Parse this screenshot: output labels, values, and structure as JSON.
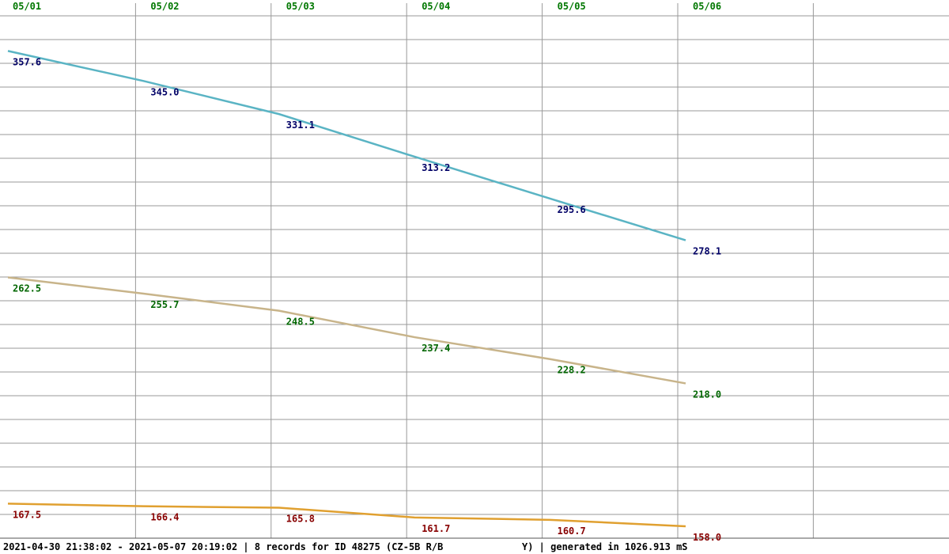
{
  "chart_data": {
    "type": "line",
    "categories": [
      "05/01",
      "05/02",
      "05/03",
      "05/04",
      "05/05",
      "05/06"
    ],
    "series": [
      {
        "color": "#5ab4c4",
        "label_color": "#000066",
        "values": [
          357.6,
          345.0,
          331.1,
          313.2,
          295.6,
          278.1
        ],
        "value_labels": [
          "357.6",
          "345.0",
          "331.1",
          "313.2",
          "295.6",
          "278.1"
        ]
      },
      {
        "color": "#c8b48a",
        "label_color": "#006600",
        "values": [
          262.5,
          255.7,
          248.5,
          237.4,
          228.2,
          218.0
        ],
        "value_labels": [
          "262.5",
          "255.7",
          "248.5",
          "237.4",
          "228.2",
          "218.0"
        ]
      },
      {
        "color": "#e0a030",
        "label_color": "#880000",
        "values": [
          167.5,
          166.4,
          165.8,
          161.7,
          160.7,
          158.0
        ],
        "value_labels": [
          "167.5",
          "166.4",
          "165.8",
          "161.7",
          "160.7",
          "158.0"
        ]
      }
    ],
    "ylim": [
      153,
      379
    ],
    "footer_left": "2021-04-30 21:38:02 - 2021-05-07 20:19:02 | 8 records for ID 48275 (CZ-5B R/B",
    "footer_right": "Y) | generated in 1026.913 mS"
  }
}
